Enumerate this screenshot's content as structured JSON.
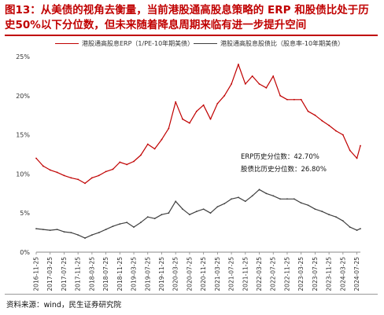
{
  "title": "图13：从美债的视角去衡量，当前港股通高股息策略的 ERP 和股债比处于历史50%以下分位数，但未来随着降息周期来临有进一步提升空间",
  "legend": {
    "erp": "港股通高股息ERP（1/PE-10年期美债）",
    "ratio": "港股通高股息股债比（股息率-10年期美债）"
  },
  "annotations": {
    "erp_percentile": "ERP历史分位数：42.70%",
    "ratio_percentile": "股债比历史分位数：26.80%"
  },
  "source": "资料来源：wind，民生证券研究院",
  "colors": {
    "erp": "#c00000",
    "ratio": "#404040",
    "title": "#c00000"
  },
  "chart_data": {
    "type": "line",
    "title": "",
    "xlabel": "",
    "ylabel": "",
    "ylim": [
      0,
      25
    ],
    "y_ticks": [
      "0%",
      "5%",
      "10%",
      "15%",
      "20%",
      "25%"
    ],
    "x_ticks": [
      "2016-11-25",
      "2017-03-25",
      "2017-07-25",
      "2017-11-25",
      "2018-03-25",
      "2018-07-25",
      "2018-11-25",
      "2019-03-25",
      "2019-07-25",
      "2019-11-25",
      "2020-03-25",
      "2020-07-25",
      "2020-11-25",
      "2021-03-25",
      "2021-07-25",
      "2021-11-25",
      "2022-03-25",
      "2022-07-25",
      "2022-11-25",
      "2023-03-25",
      "2023-07-25",
      "2023-11-25",
      "2024-03-25",
      "2024-07-25"
    ],
    "grid": false,
    "legend_position": "top",
    "x_months": [
      "2016-11",
      "2017-01",
      "2017-03",
      "2017-05",
      "2017-07",
      "2017-09",
      "2017-11",
      "2018-01",
      "2018-03",
      "2018-05",
      "2018-07",
      "2018-09",
      "2018-11",
      "2019-01",
      "2019-03",
      "2019-05",
      "2019-07",
      "2019-09",
      "2019-11",
      "2020-01",
      "2020-03",
      "2020-05",
      "2020-07",
      "2020-09",
      "2020-11",
      "2021-01",
      "2021-03",
      "2021-05",
      "2021-07",
      "2021-09",
      "2021-11",
      "2022-01",
      "2022-03",
      "2022-05",
      "2022-07",
      "2022-09",
      "2022-11",
      "2023-01",
      "2023-03",
      "2023-05",
      "2023-07",
      "2023-09",
      "2023-11",
      "2024-01",
      "2024-03",
      "2024-05",
      "2024-07",
      "2024-08"
    ],
    "series": [
      {
        "name": "港股通高股息ERP（1/PE-10年期美债）",
        "values": [
          12.0,
          11.0,
          10.5,
          10.2,
          9.8,
          9.5,
          9.3,
          8.8,
          9.5,
          9.8,
          10.3,
          10.6,
          11.5,
          11.2,
          11.6,
          12.4,
          13.8,
          13.2,
          14.4,
          15.8,
          19.2,
          17.0,
          16.5,
          18.0,
          18.8,
          17.0,
          19.0,
          20.0,
          21.5,
          24.0,
          21.5,
          22.5,
          21.5,
          21.0,
          22.5,
          20.0,
          19.5,
          19.5,
          19.5,
          18.0,
          17.5,
          16.8,
          16.2,
          15.5,
          15.0,
          13.0,
          12.0,
          13.6
        ]
      },
      {
        "name": "港股通高股息股债比（股息率-10年期美债）",
        "values": [
          3.0,
          2.9,
          2.8,
          2.9,
          2.6,
          2.5,
          2.2,
          1.8,
          2.2,
          2.5,
          2.9,
          3.3,
          3.6,
          3.8,
          3.2,
          3.8,
          4.5,
          4.3,
          4.8,
          5.0,
          6.5,
          5.5,
          4.8,
          5.2,
          5.5,
          5.0,
          5.8,
          6.2,
          6.8,
          7.0,
          6.5,
          7.2,
          8.0,
          7.5,
          7.2,
          6.8,
          6.8,
          6.8,
          6.3,
          6.0,
          5.5,
          5.2,
          4.8,
          4.5,
          4.0,
          3.2,
          2.8,
          3.0
        ]
      }
    ]
  }
}
